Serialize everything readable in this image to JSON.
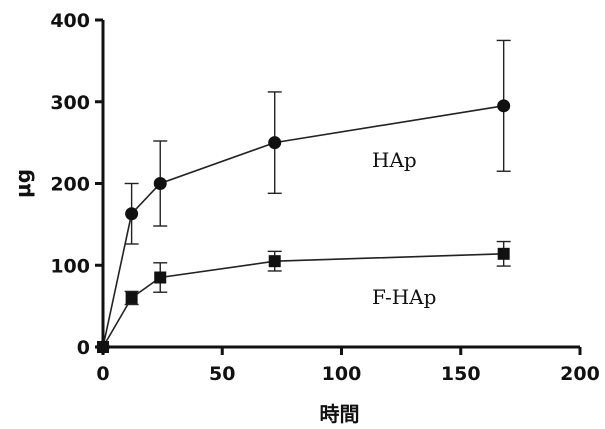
{
  "chart_data": {
    "type": "line",
    "title": "",
    "xlabel": "時間",
    "ylabel": "μg",
    "xlim": [
      0,
      200
    ],
    "ylim": [
      0,
      400
    ],
    "xticks": [
      0,
      50,
      100,
      150,
      200
    ],
    "yticks": [
      0,
      100,
      200,
      300,
      400
    ],
    "xtick_labels": [
      "0",
      "50",
      "100",
      "150",
      "200"
    ],
    "ytick_labels": [
      "0",
      "100",
      "200",
      "300",
      "400"
    ],
    "grid": false,
    "series": [
      {
        "name": "HAp",
        "marker": "circle",
        "x": [
          0,
          12,
          24,
          72,
          168
        ],
        "y": [
          0,
          163,
          200,
          250,
          295
        ],
        "err": [
          0,
          37,
          52,
          62,
          80
        ]
      },
      {
        "name": "F-HAp",
        "marker": "square",
        "x": [
          0,
          12,
          24,
          72,
          168
        ],
        "y": [
          0,
          60,
          85,
          105,
          114
        ],
        "err": [
          0,
          8,
          18,
          12,
          15
        ]
      }
    ]
  }
}
